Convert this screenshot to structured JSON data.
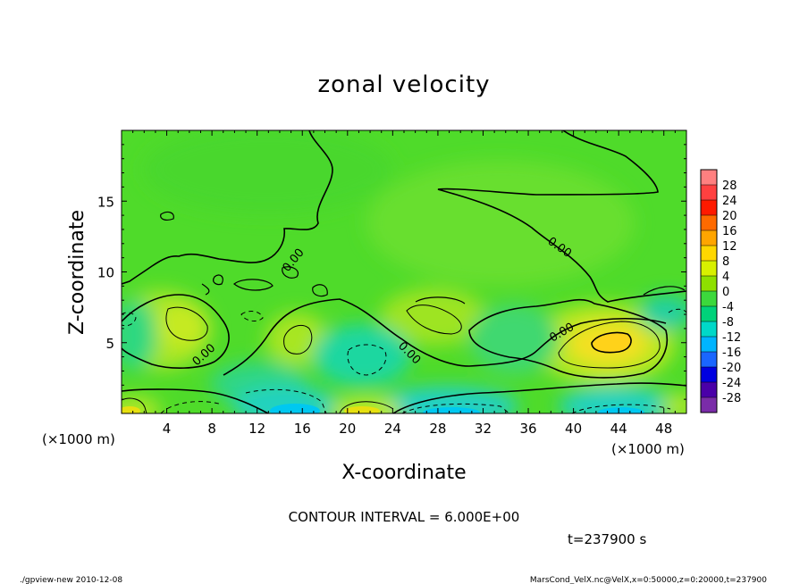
{
  "chart_data": {
    "type": "heatmap",
    "title": "zonal velocity",
    "xlabel": "X-coordinate",
    "ylabel": "Z-coordinate",
    "x_unit_left": "(×1000 m)",
    "x_unit_right": "(×1000 m)",
    "xlim": [
      0,
      50
    ],
    "ylim": [
      0,
      20
    ],
    "x_ticks": [
      4,
      8,
      12,
      16,
      20,
      24,
      28,
      32,
      36,
      40,
      44,
      48
    ],
    "y_ticks": [
      5,
      10,
      15
    ],
    "contour_interval_label": "CONTOUR INTERVAL = 6.000E+00",
    "time_label": "t=237900 s",
    "zero_contour_label": "0.00",
    "colorbar": {
      "levels": [
        28,
        24,
        20,
        16,
        12,
        8,
        4,
        0,
        -4,
        -8,
        -12,
        -16,
        -20,
        -24,
        -28
      ],
      "colors": [
        "#ff8080",
        "#ff4040",
        "#ff1a00",
        "#ff6a00",
        "#ffa500",
        "#ffd700",
        "#d8f000",
        "#8ee000",
        "#3cd83c",
        "#00d27a",
        "#00d8c8",
        "#00b4ff",
        "#1a66ff",
        "#0000e0",
        "#4a00a8",
        "#7a2ca8"
      ]
    },
    "features": [
      {
        "name": "positive-core",
        "x": 43.5,
        "z": 5.0,
        "value": 12
      },
      {
        "name": "positive-cell",
        "x": 6.0,
        "z": 6.5,
        "value": 8
      },
      {
        "name": "positive-cell",
        "x": 15.5,
        "z": 5.2,
        "value": 6
      },
      {
        "name": "positive-cell",
        "x": 27.0,
        "z": 6.8,
        "value": 6
      },
      {
        "name": "negative-cell",
        "x": 21.0,
        "z": 3.8,
        "value": -6
      },
      {
        "name": "negative-cell",
        "x": 14.0,
        "z": 0.8,
        "value": -10
      },
      {
        "name": "negative-cell",
        "x": 28.0,
        "z": 0.6,
        "value": -10
      },
      {
        "name": "negative-cell",
        "x": 44.5,
        "z": 0.6,
        "value": -10
      },
      {
        "name": "positive-cell",
        "x": 22.0,
        "z": 0.5,
        "value": 8
      }
    ]
  },
  "footer": {
    "left": "./gpview-new   2010-12-08",
    "right": "MarsCond_VelX.nc@VelX,x=0:50000,z=0:20000,t=237900"
  }
}
